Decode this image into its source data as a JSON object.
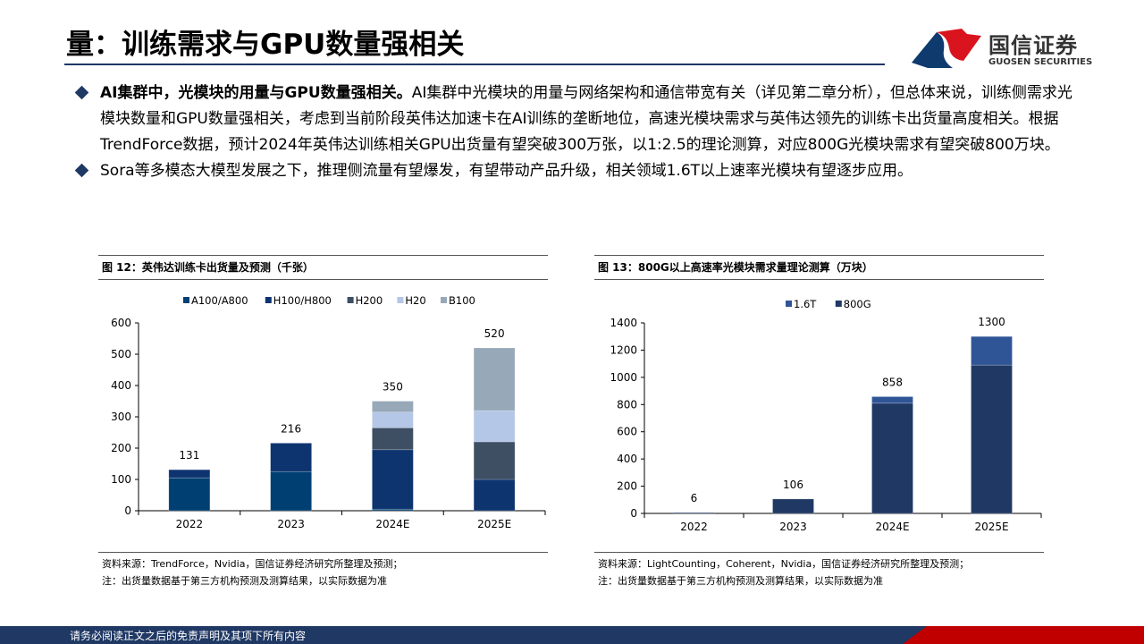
{
  "header": {
    "title": "量：训练需求与GPU数量强相关",
    "logo_cn": "国信证券",
    "logo_en": "GUOSEN SECURITIES"
  },
  "bullets": [
    {
      "bold": "AI集群中，光模块的用量与GPU数量强相关。",
      "text": "AI集群中光模块的用量与网络架构和通信带宽有关（详见第二章分析），但总体来说，训练侧需求光模块数量和GPU数量强相关，考虑到当前阶段英伟达加速卡在AI训练的垄断地位，高速光模块需求与英伟达领先的训练卡出货量高度相关。根据TrendForce数据，预计2024年英伟达训练相关GPU出货量有望突破300万张，以1:2.5的理论测算，对应800G光模块需求有望突破800万块。"
    },
    {
      "bold": "",
      "text": "Sora等多模态大模型发展之下，推理侧流量有望爆发，有望带动产品升级，相关领域1.6T以上速率光模块有望逐步应用。"
    }
  ],
  "chart_data": [
    {
      "type": "bar",
      "stacked": true,
      "title": "图 12：英伟达训练卡出货量及预测（千张）",
      "categories": [
        "2022",
        "2023",
        "2024E",
        "2025E"
      ],
      "series": [
        {
          "name": "A100/A800",
          "values": [
            105,
            125,
            5,
            0
          ],
          "color": "#003f72"
        },
        {
          "name": "H100/H800",
          "values": [
            26,
            91,
            190,
            100
          ],
          "color": "#0e3470"
        },
        {
          "name": "H200",
          "values": [
            0,
            0,
            70,
            120
          ],
          "color": "#3e4f63"
        },
        {
          "name": "H20",
          "values": [
            0,
            0,
            50,
            100
          ],
          "color": "#b4c7e7"
        },
        {
          "name": "B100",
          "values": [
            0,
            0,
            35,
            200
          ],
          "color": "#97a8b8"
        }
      ],
      "totals": [
        "131",
        "216",
        "350",
        "520"
      ],
      "ylim": [
        0,
        600
      ],
      "yticks": [
        0,
        100,
        200,
        300,
        400,
        500,
        600
      ],
      "legend": "top",
      "grid": false,
      "source": "资料来源：TrendForce，Nvidia，国信证券经济研究所整理及预测；",
      "note": "注：出货量数据基于第三方机构预测及测算结果，以实际数据为准"
    },
    {
      "type": "bar",
      "stacked": true,
      "title": "图 13：800G以上高速率光模块需求量理论测算（万块）",
      "categories": [
        "2022",
        "2023",
        "2024E",
        "2025E"
      ],
      "series": [
        {
          "name": "800G",
          "values": [
            6,
            106,
            810,
            1090
          ],
          "color": "#203864"
        },
        {
          "name": "1.6T",
          "values": [
            0,
            0,
            48,
            210
          ],
          "color": "#2f5597"
        }
      ],
      "legend_order": [
        "1.6T",
        "800G"
      ],
      "totals": [
        "6",
        "106",
        "858",
        "1300"
      ],
      "ylim": [
        0,
        1400
      ],
      "yticks": [
        0,
        200,
        400,
        600,
        800,
        1000,
        1200,
        1400
      ],
      "legend": "top",
      "grid": false,
      "source": "资料来源：LightCounting，Coherent，Nvidia，国信证券经济研究所整理及预测；",
      "note": "注：出货量数据基于第三方机构预测及测算结果，以实际数据为准"
    }
  ],
  "footer": {
    "disclaimer": "请务必阅读正文之后的免责声明及其项下所有内容"
  }
}
